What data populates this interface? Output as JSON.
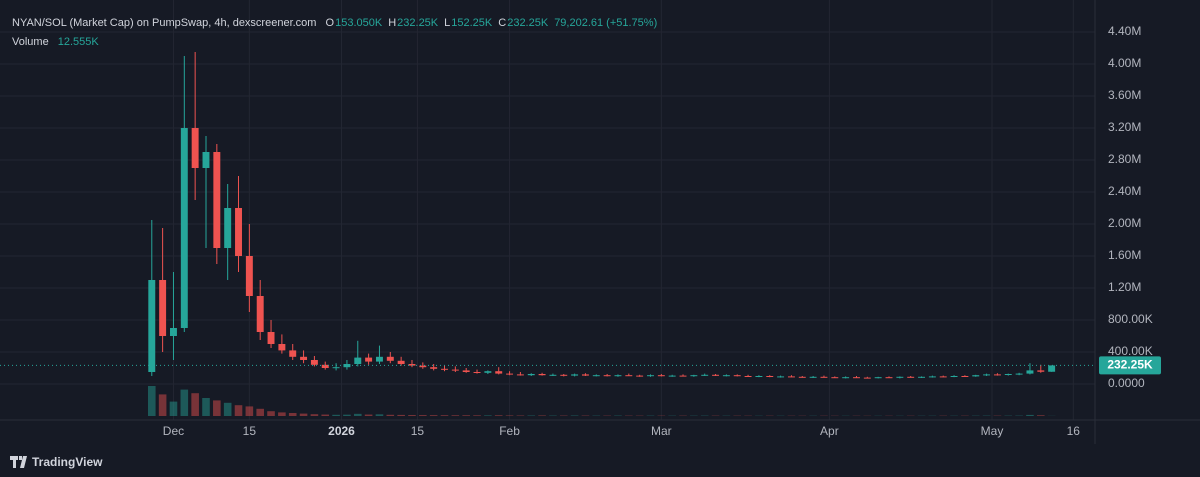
{
  "chart_data": {
    "type": "candlestick",
    "title": "NYAN/SOL (Market Cap) on PumpSwap, 4h, dexscreener.com",
    "ohlc_legend": [
      {
        "name": "O",
        "value": "153.050K"
      },
      {
        "name": "H",
        "value": "232.25K"
      },
      {
        "name": "L",
        "value": "152.25K"
      },
      {
        "name": "C",
        "value": "232.25K"
      }
    ],
    "change_label": "79,202.61 (+51.75%)",
    "volume_name": "Volume",
    "volume_label": "12.555K",
    "last_price_label": "232.25K",
    "brand": "TradingView",
    "up_color": "#26a69a",
    "down_color": "#ef5350",
    "grid": true,
    "xlim": [
      -14,
      87
    ],
    "ylim": [
      -400000,
      4800000
    ],
    "xticks": [
      {
        "value": 2,
        "label": "Dec"
      },
      {
        "value": 9,
        "label": "15"
      },
      {
        "value": 17.5,
        "label": "2026"
      },
      {
        "value": 24.5,
        "label": "15"
      },
      {
        "value": 33,
        "label": "Feb"
      },
      {
        "value": 47,
        "label": "Mar"
      },
      {
        "value": 62.5,
        "label": "Apr"
      },
      {
        "value": 77.5,
        "label": "May"
      },
      {
        "value": 85,
        "label": "16"
      }
    ],
    "yticks": [
      {
        "value": 0,
        "label": "0.0000"
      },
      {
        "value": 400000,
        "label": "400.00K"
      },
      {
        "value": 800000,
        "label": "800.00K"
      },
      {
        "value": 1200000,
        "label": "1.20M"
      },
      {
        "value": 1600000,
        "label": "1.60M"
      },
      {
        "value": 2000000,
        "label": "2.00M"
      },
      {
        "value": 2400000,
        "label": "2.40M"
      },
      {
        "value": 2800000,
        "label": "2.80M"
      },
      {
        "value": 3200000,
        "label": "3.20M"
      },
      {
        "value": 3600000,
        "label": "3.60M"
      },
      {
        "value": 4000000,
        "label": "4.00M"
      },
      {
        "value": 4400000,
        "label": "4.40M"
      }
    ],
    "open": [
      150000,
      1300000,
      600000,
      700000,
      3200000,
      2700000,
      2900000,
      1700000,
      2200000,
      1600000,
      1100000,
      650000,
      500000,
      420000,
      340000,
      300000,
      240000,
      200000,
      210000,
      250000,
      330000,
      280000,
      340000,
      290000,
      250000,
      230000,
      210000,
      190000,
      180000,
      170000,
      150000,
      140000,
      160000,
      130000,
      120000,
      110000,
      125000,
      110000,
      115000,
      105000,
      120000,
      105000,
      110000,
      100000,
      110000,
      105000,
      100000,
      110000,
      100000,
      105000,
      100000,
      110000,
      115000,
      105000,
      110000,
      100000,
      95000,
      100000,
      90000,
      95000,
      90000,
      85000,
      90000,
      85000,
      80000,
      85000,
      80000,
      75000,
      85000,
      80000,
      90000,
      85000,
      90000,
      95000,
      90000,
      100000,
      95000,
      110000,
      120000,
      115000,
      125000,
      130000,
      170000,
      153050
    ],
    "high": [
      2050000,
      1950000,
      1400000,
      4100000,
      4150000,
      3100000,
      3000000,
      2500000,
      2600000,
      2000000,
      1300000,
      800000,
      620000,
      500000,
      420000,
      350000,
      280000,
      260000,
      300000,
      540000,
      380000,
      480000,
      400000,
      340000,
      300000,
      270000,
      250000,
      230000,
      220000,
      200000,
      180000,
      170000,
      210000,
      160000,
      150000,
      135000,
      140000,
      130000,
      125000,
      130000,
      135000,
      120000,
      125000,
      120000,
      130000,
      115000,
      120000,
      125000,
      115000,
      120000,
      115000,
      130000,
      125000,
      120000,
      120000,
      115000,
      110000,
      110000,
      105000,
      110000,
      100000,
      100000,
      105000,
      95000,
      95000,
      100000,
      90000,
      90000,
      95000,
      95000,
      100000,
      95000,
      105000,
      105000,
      110000,
      110000,
      115000,
      130000,
      135000,
      130000,
      140000,
      260000,
      240000,
      232250
    ],
    "low": [
      100000,
      400000,
      300000,
      650000,
      2300000,
      1700000,
      1500000,
      1300000,
      1400000,
      900000,
      550000,
      450000,
      380000,
      300000,
      260000,
      220000,
      180000,
      170000,
      180000,
      220000,
      240000,
      250000,
      260000,
      230000,
      210000,
      190000,
      170000,
      160000,
      150000,
      140000,
      130000,
      125000,
      120000,
      110000,
      105000,
      100000,
      105000,
      100000,
      95000,
      95000,
      100000,
      95000,
      95000,
      90000,
      100000,
      90000,
      90000,
      95000,
      90000,
      95000,
      90000,
      100000,
      100000,
      95000,
      95000,
      90000,
      85000,
      85000,
      80000,
      85000,
      80000,
      75000,
      80000,
      75000,
      70000,
      75000,
      70000,
      70000,
      75000,
      70000,
      80000,
      75000,
      80000,
      85000,
      85000,
      90000,
      90000,
      100000,
      105000,
      105000,
      110000,
      120000,
      140000,
      152250
    ],
    "close": [
      1300000,
      600000,
      700000,
      3200000,
      2700000,
      2900000,
      1700000,
      2200000,
      1600000,
      1100000,
      650000,
      500000,
      420000,
      340000,
      300000,
      240000,
      200000,
      210000,
      250000,
      330000,
      280000,
      340000,
      290000,
      250000,
      230000,
      210000,
      190000,
      180000,
      170000,
      150000,
      140000,
      160000,
      130000,
      120000,
      110000,
      125000,
      110000,
      115000,
      105000,
      120000,
      105000,
      110000,
      100000,
      110000,
      105000,
      100000,
      110000,
      100000,
      105000,
      100000,
      110000,
      115000,
      105000,
      110000,
      100000,
      95000,
      100000,
      90000,
      95000,
      90000,
      85000,
      90000,
      85000,
      80000,
      85000,
      80000,
      75000,
      85000,
      80000,
      90000,
      85000,
      90000,
      95000,
      90000,
      100000,
      95000,
      110000,
      120000,
      115000,
      125000,
      130000,
      170000,
      153050,
      232250
    ],
    "volume": [
      2500000,
      1800000,
      1200000,
      2200000,
      1900000,
      1500000,
      1300000,
      1100000,
      900000,
      800000,
      600000,
      400000,
      300000,
      250000,
      200000,
      150000,
      120000,
      100000,
      110000,
      180000,
      120000,
      140000,
      100000,
      90000,
      80000,
      75000,
      70000,
      65000,
      60000,
      60000,
      55000,
      50000,
      60000,
      45000,
      40000,
      40000,
      45000,
      35000,
      35000,
      40000,
      35000,
      30000,
      30000,
      35000,
      30000,
      28000,
      30000,
      28000,
      26000,
      28000,
      26000,
      30000,
      28000,
      25000,
      26000,
      24000,
      22000,
      24000,
      22000,
      22000,
      20000,
      20000,
      22000,
      20000,
      18000,
      20000,
      18000,
      18000,
      20000,
      18000,
      22000,
      20000,
      22000,
      24000,
      22000,
      25000,
      26000,
      30000,
      28000,
      28000,
      30000,
      90000,
      60000,
      12555
    ]
  }
}
